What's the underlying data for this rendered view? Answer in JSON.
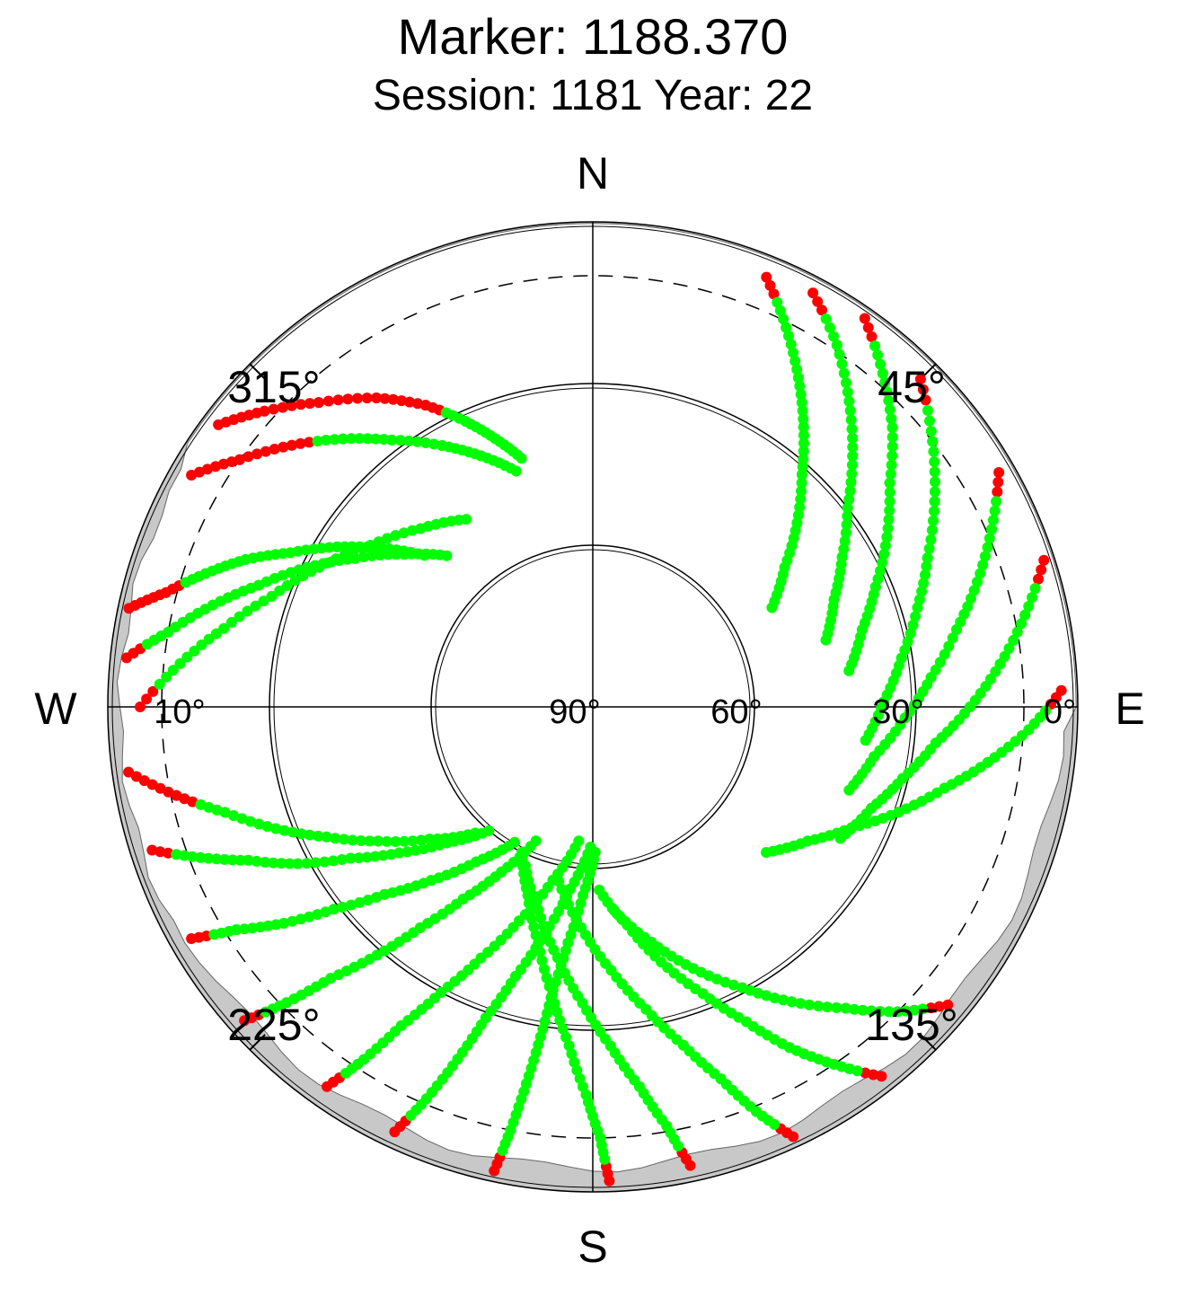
{
  "title": "Marker: 1188.370",
  "subtitle": "Session: 1181 Year: 22",
  "compass": {
    "north": "N",
    "south": "S",
    "east": "E",
    "west": "W"
  },
  "azimuth_labels": [
    {
      "azimuth": 45,
      "text": "45°"
    },
    {
      "azimuth": 135,
      "text": "135°"
    },
    {
      "azimuth": 225,
      "text": "225°"
    },
    {
      "azimuth": 315,
      "text": "315°"
    }
  ],
  "elevation_labels": [
    {
      "elevation": 90,
      "text": "90°"
    },
    {
      "elevation": 60,
      "text": "60°"
    },
    {
      "elevation": 30,
      "text": "30°"
    },
    {
      "elevation": 0,
      "text": "0°"
    },
    {
      "elevation": 10,
      "text": "10°"
    }
  ],
  "colors": {
    "tracked": "#00ff00",
    "low_snr": "#ff0000",
    "mask": "#c8c8c8",
    "axis": "#000000"
  },
  "chart_data": {
    "type": "scatter",
    "projection": "polar-skyplot",
    "axis": {
      "azimuth_range": [
        0,
        360
      ],
      "elevation_range": [
        0,
        90
      ],
      "rings": [
        0,
        30,
        60,
        90
      ],
      "cutoff_dashed": 10
    },
    "grid": true,
    "satellite_tracks": [
      {
        "points": [
          [
            307,
            3
          ],
          [
            312,
            8
          ],
          [
            318,
            14
          ],
          [
            325,
            20
          ],
          [
            331,
            26
          ],
          [
            336,
            32
          ],
          [
            340,
            37
          ],
          [
            344,
            42
          ]
        ],
        "red_until": 5
      },
      {
        "points": [
          [
            282,
            2
          ],
          [
            285,
            8
          ],
          [
            289,
            14
          ],
          [
            293,
            20
          ],
          [
            297,
            27
          ],
          [
            302,
            34
          ],
          [
            307,
            41
          ],
          [
            312,
            48
          ]
        ],
        "red_until": 2
      },
      {
        "points": [
          [
            276,
            3
          ],
          [
            280,
            10
          ],
          [
            285,
            17
          ],
          [
            290,
            24
          ],
          [
            296,
            31
          ],
          [
            302,
            38
          ],
          [
            309,
            45
          ],
          [
            316,
            51
          ]
        ],
        "red_until": 1
      },
      {
        "points": [
          [
            300,
            4
          ],
          [
            305,
            10
          ],
          [
            311,
            16
          ],
          [
            317,
            22
          ],
          [
            323,
            28
          ],
          [
            330,
            34
          ],
          [
            336,
            39
          ],
          [
            342,
            44
          ]
        ],
        "red_until": 3
      },
      {
        "points": [
          [
            270,
            6
          ],
          [
            276,
            13
          ],
          [
            282,
            20
          ],
          [
            289,
            27
          ],
          [
            297,
            33
          ],
          [
            306,
            39
          ],
          [
            316,
            44
          ],
          [
            326,
            48
          ]
        ],
        "red_until": 1
      },
      {
        "points": [
          [
            28,
            3
          ],
          [
            34,
            9
          ],
          [
            40,
            16
          ],
          [
            46,
            23
          ],
          [
            52,
            30
          ],
          [
            59,
            36
          ],
          [
            66,
            41
          ],
          [
            74,
            45
          ]
        ],
        "red_until": 1
      },
      {
        "points": [
          [
            35,
            2
          ],
          [
            41,
            8
          ],
          [
            47,
            14
          ],
          [
            53,
            21
          ],
          [
            60,
            27
          ],
          [
            67,
            33
          ],
          [
            74,
            38
          ],
          [
            82,
            42
          ]
        ],
        "red_until": 1
      },
      {
        "points": [
          [
            45,
            4
          ],
          [
            52,
            10
          ],
          [
            59,
            16
          ],
          [
            66,
            22
          ],
          [
            73,
            27
          ],
          [
            81,
            32
          ],
          [
            89,
            36
          ],
          [
            97,
            39
          ]
        ],
        "red_until": 1
      },
      {
        "points": [
          [
            60,
            3
          ],
          [
            66,
            9
          ],
          [
            72,
            15
          ],
          [
            78,
            21
          ],
          [
            85,
            27
          ],
          [
            92,
            32
          ],
          [
            100,
            37
          ],
          [
            108,
            40
          ]
        ],
        "red_until": 1
      },
      {
        "points": [
          [
            72,
            2
          ],
          [
            78,
            8
          ],
          [
            84,
            14
          ],
          [
            90,
            20
          ],
          [
            96,
            26
          ],
          [
            103,
            31
          ],
          [
            110,
            35
          ],
          [
            118,
            38
          ]
        ],
        "red_until": 1
      },
      {
        "points": [
          [
            88,
            3
          ],
          [
            93,
            9
          ],
          [
            98,
            16
          ],
          [
            103,
            23
          ],
          [
            109,
            30
          ],
          [
            115,
            37
          ],
          [
            122,
            43
          ],
          [
            130,
            48
          ]
        ],
        "red_until": 1
      },
      {
        "points": [
          [
            22,
            4
          ],
          [
            27,
            11
          ],
          [
            32,
            18
          ],
          [
            37,
            25
          ],
          [
            42,
            32
          ],
          [
            48,
            39
          ],
          [
            54,
            46
          ],
          [
            61,
            52
          ]
        ],
        "red_until": 1
      },
      {
        "points": [
          [
            130,
            4
          ],
          [
            135,
            10
          ],
          [
            140,
            17
          ],
          [
            146,
            24
          ],
          [
            152,
            31
          ],
          [
            159,
            38
          ],
          [
            166,
            45
          ],
          [
            174,
            52
          ]
        ],
        "red_until": 1
      },
      {
        "points": [
          [
            142,
            3
          ],
          [
            146,
            10
          ],
          [
            150,
            17
          ],
          [
            154,
            25
          ],
          [
            159,
            33
          ],
          [
            165,
            41
          ],
          [
            171,
            49
          ],
          [
            178,
            56
          ]
        ],
        "red_until": 1
      },
      {
        "points": [
          [
            155,
            2
          ],
          [
            158,
            9
          ],
          [
            161,
            17
          ],
          [
            165,
            25
          ],
          [
            170,
            33
          ],
          [
            176,
            41
          ],
          [
            183,
            49
          ],
          [
            191,
            57
          ]
        ],
        "red_until": 1
      },
      {
        "points": [
          [
            168,
            3
          ],
          [
            170,
            11
          ],
          [
            173,
            19
          ],
          [
            177,
            27
          ],
          [
            182,
            35
          ],
          [
            188,
            43
          ],
          [
            195,
            51
          ],
          [
            203,
            58
          ]
        ],
        "red_until": 1
      },
      {
        "points": [
          [
            178,
            2
          ],
          [
            179,
            10
          ],
          [
            181,
            18
          ],
          [
            184,
            27
          ],
          [
            188,
            36
          ],
          [
            193,
            45
          ],
          [
            199,
            53
          ],
          [
            206,
            60
          ]
        ],
        "red_until": 1
      },
      {
        "points": [
          [
            192,
            2
          ],
          [
            191,
            10
          ],
          [
            190,
            19
          ],
          [
            189,
            28
          ],
          [
            188,
            37
          ],
          [
            186,
            46
          ],
          [
            183,
            55
          ],
          [
            179,
            63
          ]
        ],
        "red_until": 1
      },
      {
        "points": [
          [
            205,
            3
          ],
          [
            203,
            11
          ],
          [
            201,
            20
          ],
          [
            199,
            29
          ],
          [
            196,
            38
          ],
          [
            192,
            47
          ],
          [
            187,
            56
          ],
          [
            181,
            64
          ]
        ],
        "red_until": 1
      },
      {
        "points": [
          [
            215,
            4
          ],
          [
            213,
            12
          ],
          [
            211,
            21
          ],
          [
            208,
            30
          ],
          [
            204,
            39
          ],
          [
            199,
            48
          ],
          [
            193,
            57
          ],
          [
            186,
            65
          ]
        ],
        "red_until": 1
      },
      {
        "points": [
          [
            228,
            3
          ],
          [
            226,
            11
          ],
          [
            224,
            20
          ],
          [
            221,
            29
          ],
          [
            218,
            38
          ],
          [
            214,
            47
          ],
          [
            209,
            55
          ],
          [
            203,
            63
          ]
        ],
        "red_until": 1
      },
      {
        "points": [
          [
            240,
            4
          ],
          [
            238,
            12
          ],
          [
            235,
            20
          ],
          [
            232,
            29
          ],
          [
            228,
            38
          ],
          [
            223,
            46
          ],
          [
            217,
            54
          ],
          [
            210,
            61
          ]
        ],
        "red_until": 1
      },
      {
        "points": [
          [
            252,
            4
          ],
          [
            249,
            12
          ],
          [
            246,
            20
          ],
          [
            242,
            28
          ],
          [
            238,
            37
          ],
          [
            233,
            45
          ],
          [
            227,
            53
          ],
          [
            220,
            60
          ]
        ],
        "red_until": 1
      },
      {
        "points": [
          [
            262,
            3
          ],
          [
            258,
            11
          ],
          [
            254,
            19
          ],
          [
            249,
            27
          ],
          [
            244,
            35
          ],
          [
            238,
            43
          ],
          [
            231,
            51
          ],
          [
            223,
            58
          ]
        ],
        "red_until": 2
      }
    ]
  }
}
